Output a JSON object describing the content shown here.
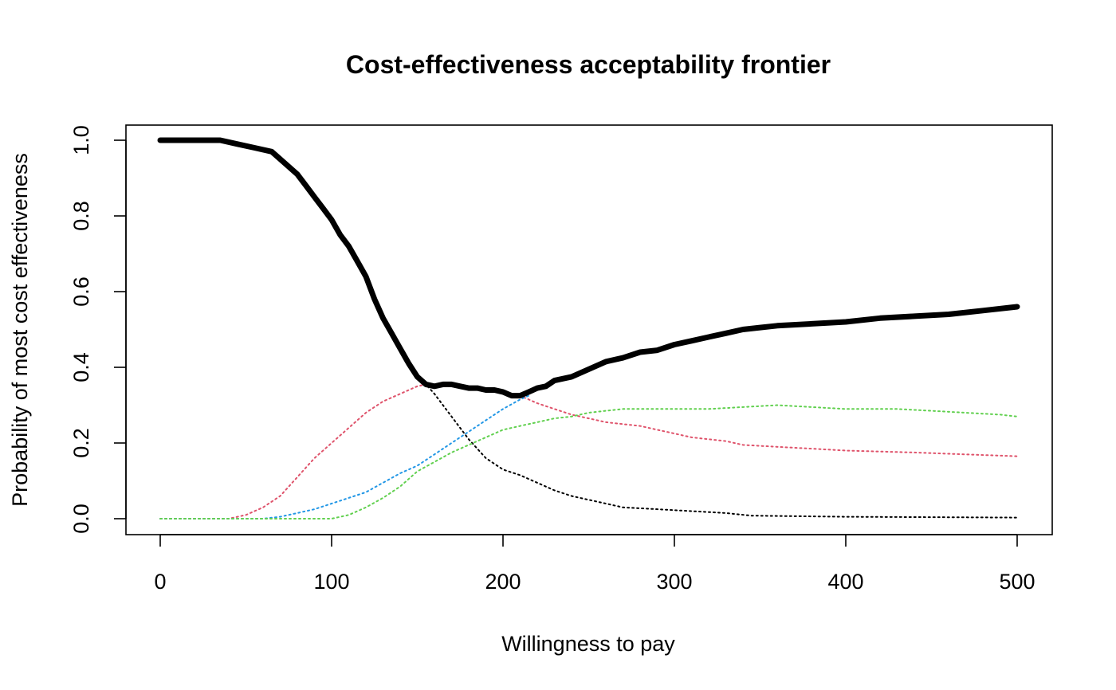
{
  "chart_data": {
    "type": "line",
    "title": "Cost-effectiveness acceptability frontier",
    "xlabel": "Willingness to pay",
    "ylabel": "Probability of most cost effectiveness",
    "xlim": [
      0,
      500
    ],
    "ylim": [
      0,
      1
    ],
    "xticks": [
      0,
      100,
      200,
      300,
      400,
      500
    ],
    "yticks": [
      0.0,
      0.2,
      0.4,
      0.6,
      0.8,
      1.0
    ],
    "xtick_labels": [
      "0",
      "100",
      "200",
      "300",
      "400",
      "500"
    ],
    "ytick_labels": [
      "0.0",
      "0.2",
      "0.4",
      "0.6",
      "0.8",
      "1.0"
    ],
    "grid": false,
    "legend": "none",
    "frontier": {
      "color": "#000000",
      "style": "solid-thick",
      "points": [
        [
          0,
          1.0
        ],
        [
          35,
          1.0
        ],
        [
          45,
          0.99
        ],
        [
          55,
          0.98
        ],
        [
          65,
          0.97
        ],
        [
          75,
          0.93
        ],
        [
          80,
          0.91
        ],
        [
          85,
          0.88
        ],
        [
          90,
          0.85
        ],
        [
          95,
          0.82
        ],
        [
          100,
          0.79
        ],
        [
          105,
          0.75
        ],
        [
          110,
          0.72
        ],
        [
          115,
          0.68
        ],
        [
          120,
          0.64
        ],
        [
          125,
          0.58
        ],
        [
          130,
          0.53
        ],
        [
          135,
          0.49
        ],
        [
          140,
          0.45
        ],
        [
          145,
          0.41
        ],
        [
          150,
          0.375
        ],
        [
          155,
          0.355
        ],
        [
          160,
          0.35
        ],
        [
          165,
          0.355
        ],
        [
          170,
          0.355
        ],
        [
          175,
          0.35
        ],
        [
          180,
          0.345
        ],
        [
          185,
          0.345
        ],
        [
          190,
          0.34
        ],
        [
          195,
          0.34
        ],
        [
          200,
          0.335
        ],
        [
          205,
          0.325
        ],
        [
          210,
          0.325
        ],
        [
          215,
          0.335
        ],
        [
          220,
          0.345
        ],
        [
          225,
          0.35
        ],
        [
          230,
          0.365
        ],
        [
          240,
          0.375
        ],
        [
          250,
          0.395
        ],
        [
          260,
          0.415
        ],
        [
          270,
          0.425
        ],
        [
          280,
          0.44
        ],
        [
          290,
          0.445
        ],
        [
          300,
          0.46
        ],
        [
          310,
          0.47
        ],
        [
          320,
          0.48
        ],
        [
          330,
          0.49
        ],
        [
          340,
          0.5
        ],
        [
          350,
          0.505
        ],
        [
          360,
          0.51
        ],
        [
          380,
          0.515
        ],
        [
          400,
          0.52
        ],
        [
          420,
          0.53
        ],
        [
          440,
          0.535
        ],
        [
          460,
          0.54
        ],
        [
          480,
          0.55
        ],
        [
          500,
          0.56
        ]
      ]
    },
    "series": [
      {
        "color": "#000000",
        "style": "dotted",
        "points": [
          [
            0,
            1.0
          ],
          [
            35,
            1.0
          ],
          [
            45,
            0.99
          ],
          [
            55,
            0.98
          ],
          [
            65,
            0.97
          ],
          [
            75,
            0.93
          ],
          [
            85,
            0.88
          ],
          [
            95,
            0.82
          ],
          [
            105,
            0.75
          ],
          [
            115,
            0.68
          ],
          [
            125,
            0.58
          ],
          [
            135,
            0.49
          ],
          [
            145,
            0.41
          ],
          [
            150,
            0.375
          ],
          [
            155,
            0.355
          ],
          [
            160,
            0.33
          ],
          [
            170,
            0.27
          ],
          [
            180,
            0.21
          ],
          [
            190,
            0.16
          ],
          [
            200,
            0.13
          ],
          [
            210,
            0.115
          ],
          [
            220,
            0.095
          ],
          [
            230,
            0.075
          ],
          [
            240,
            0.06
          ],
          [
            250,
            0.05
          ],
          [
            260,
            0.04
          ],
          [
            270,
            0.03
          ],
          [
            290,
            0.025
          ],
          [
            310,
            0.02
          ],
          [
            330,
            0.015
          ],
          [
            345,
            0.008
          ],
          [
            400,
            0.005
          ],
          [
            450,
            0.004
          ],
          [
            500,
            0.003
          ]
        ]
      },
      {
        "color": "#DF536B",
        "style": "dotted",
        "points": [
          [
            0,
            0.0
          ],
          [
            40,
            0.0
          ],
          [
            50,
            0.01
          ],
          [
            60,
            0.03
          ],
          [
            70,
            0.06
          ],
          [
            80,
            0.11
          ],
          [
            90,
            0.16
          ],
          [
            100,
            0.2
          ],
          [
            110,
            0.24
          ],
          [
            120,
            0.28
          ],
          [
            130,
            0.31
          ],
          [
            140,
            0.33
          ],
          [
            150,
            0.35
          ],
          [
            155,
            0.355
          ],
          [
            160,
            0.35
          ],
          [
            170,
            0.35
          ],
          [
            180,
            0.345
          ],
          [
            190,
            0.345
          ],
          [
            200,
            0.335
          ],
          [
            210,
            0.325
          ],
          [
            220,
            0.305
          ],
          [
            230,
            0.29
          ],
          [
            240,
            0.275
          ],
          [
            250,
            0.265
          ],
          [
            260,
            0.255
          ],
          [
            270,
            0.25
          ],
          [
            280,
            0.245
          ],
          [
            290,
            0.235
          ],
          [
            300,
            0.225
          ],
          [
            310,
            0.215
          ],
          [
            320,
            0.21
          ],
          [
            330,
            0.205
          ],
          [
            340,
            0.195
          ],
          [
            360,
            0.19
          ],
          [
            380,
            0.185
          ],
          [
            400,
            0.18
          ],
          [
            440,
            0.175
          ],
          [
            470,
            0.17
          ],
          [
            500,
            0.165
          ]
        ]
      },
      {
        "color": "#2297E6",
        "style": "dotted",
        "points": [
          [
            0,
            0.0
          ],
          [
            60,
            0.0
          ],
          [
            70,
            0.005
          ],
          [
            80,
            0.015
          ],
          [
            90,
            0.025
          ],
          [
            100,
            0.04
          ],
          [
            110,
            0.055
          ],
          [
            120,
            0.07
          ],
          [
            130,
            0.095
          ],
          [
            140,
            0.12
          ],
          [
            150,
            0.14
          ],
          [
            160,
            0.17
          ],
          [
            170,
            0.2
          ],
          [
            180,
            0.23
          ],
          [
            190,
            0.26
          ],
          [
            200,
            0.29
          ],
          [
            210,
            0.315
          ],
          [
            215,
            0.325
          ]
        ]
      },
      {
        "color": "#61D04F",
        "style": "dotted",
        "points": [
          [
            0,
            0.0
          ],
          [
            100,
            0.0
          ],
          [
            110,
            0.01
          ],
          [
            120,
            0.03
          ],
          [
            130,
            0.055
          ],
          [
            140,
            0.085
          ],
          [
            150,
            0.125
          ],
          [
            160,
            0.15
          ],
          [
            170,
            0.175
          ],
          [
            180,
            0.195
          ],
          [
            190,
            0.215
          ],
          [
            200,
            0.235
          ],
          [
            210,
            0.245
          ],
          [
            220,
            0.255
          ],
          [
            230,
            0.265
          ],
          [
            240,
            0.27
          ],
          [
            250,
            0.28
          ],
          [
            260,
            0.285
          ],
          [
            270,
            0.29
          ],
          [
            280,
            0.29
          ],
          [
            300,
            0.29
          ],
          [
            320,
            0.29
          ],
          [
            340,
            0.295
          ],
          [
            360,
            0.3
          ],
          [
            380,
            0.295
          ],
          [
            400,
            0.29
          ],
          [
            430,
            0.29
          ],
          [
            450,
            0.285
          ],
          [
            470,
            0.28
          ],
          [
            490,
            0.275
          ],
          [
            500,
            0.27
          ]
        ]
      }
    ]
  }
}
